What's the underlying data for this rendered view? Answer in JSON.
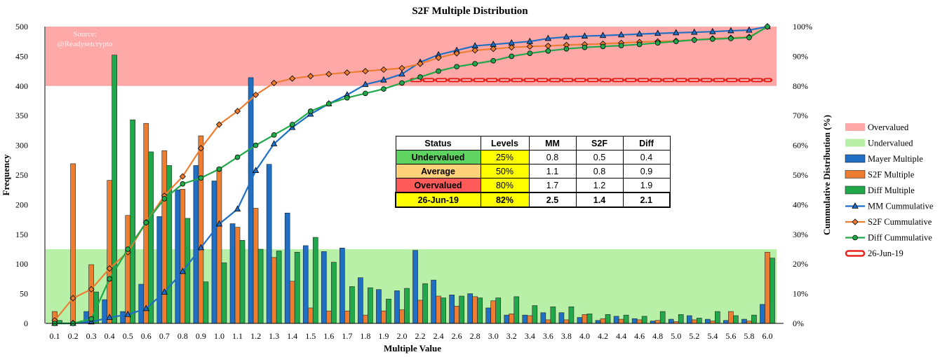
{
  "chart_data": {
    "type": "bar",
    "title": "S2F Multiple Distribution",
    "xlabel": "Multiple Value",
    "ylabel": "Frequency",
    "y2label": "Cummulative Distribution (%)",
    "ylim": [
      0,
      500
    ],
    "y2lim": [
      0,
      100
    ],
    "yticks": [
      "0",
      "50",
      "100",
      "150",
      "200",
      "250",
      "300",
      "350",
      "400",
      "450",
      "500"
    ],
    "y2ticks": [
      "0%",
      "10%",
      "20%",
      "30%",
      "40%",
      "50%",
      "60%",
      "70%",
      "80%",
      "90%",
      "100%"
    ],
    "categories": [
      "0.1",
      "0.2",
      "0.3",
      "0.4",
      "0.5",
      "0.6",
      "0.7",
      "0.8",
      "0.9",
      "1.0",
      "1.1",
      "1.2",
      "1.3",
      "1.4",
      "1.5",
      "1.6",
      "1.7",
      "1.8",
      "1.9",
      "2.0",
      "2.2",
      "2.4",
      "2.6",
      "2.8",
      "3.0",
      "3.2",
      "3.4",
      "3.6",
      "3.8",
      "4.0",
      "4.2",
      "4.4",
      "4.6",
      "4.8",
      "5.0",
      "5.2",
      "5.4",
      "5.6",
      "5.8",
      "6.0"
    ],
    "bar_series": [
      {
        "name": "Mayer Multiple",
        "color": "#1f6fc5",
        "values": [
          0,
          0,
          20,
          40,
          20,
          66,
          180,
          225,
          266,
          240,
          168,
          414,
          268,
          186,
          131,
          121,
          127,
          77,
          57,
          55,
          123,
          73,
          48,
          50,
          26,
          14,
          14,
          18,
          18,
          10,
          5,
          12,
          8,
          4,
          7,
          13,
          7,
          5,
          7,
          32
        ]
      },
      {
        "name": "S2F Multiple",
        "color": "#ed7d31",
        "values": [
          20,
          269,
          99,
          241,
          182,
          337,
          291,
          226,
          316,
          262,
          162,
          194,
          111,
          71,
          26,
          21,
          21,
          14,
          21,
          23,
          39,
          46,
          29,
          45,
          38,
          16,
          13,
          6,
          6,
          15,
          8,
          7,
          6,
          5,
          3,
          6,
          4,
          20,
          4,
          120
        ]
      },
      {
        "name": "Diff Multiple",
        "color": "#21a84a",
        "values": [
          5,
          0,
          53,
          452,
          343,
          289,
          266,
          177,
          70,
          102,
          140,
          125,
          122,
          120,
          145,
          103,
          62,
          60,
          41,
          59,
          67,
          43,
          46,
          43,
          43,
          45,
          30,
          28,
          28,
          16,
          15,
          14,
          12,
          20,
          15,
          9,
          20,
          13,
          14,
          110
        ]
      }
    ],
    "line_series": [
      {
        "name": "MM Cummulative",
        "color": "#1f6fc5",
        "marker": "triangle",
        "values": [
          0,
          0,
          0.5,
          2,
          3,
          5,
          10.5,
          17.5,
          25.5,
          33.5,
          38.5,
          51.5,
          60.5,
          66,
          70.5,
          74,
          77,
          80.5,
          82,
          84,
          88,
          90.5,
          92,
          93.5,
          94,
          94.5,
          95,
          96,
          96.5,
          96.8,
          97,
          97.2,
          97.5,
          97.7,
          97.9,
          98.1,
          98.3,
          98.6,
          98.8,
          100
        ]
      },
      {
        "name": "S2F Cummulative",
        "color": "#ed7d31",
        "marker": "diamond",
        "values": [
          1,
          8.5,
          11.5,
          18.5,
          24,
          34,
          43,
          49.5,
          59,
          67,
          71.5,
          77,
          81,
          82.5,
          83.3,
          84,
          84.5,
          85,
          85.5,
          86,
          87.5,
          89.5,
          91,
          92,
          92.5,
          93,
          93.3,
          93.5,
          93.8,
          94,
          94.2,
          94.5,
          94.8,
          95,
          95.2,
          95.5,
          96,
          96.2,
          96.5,
          100
        ]
      },
      {
        "name": "Diff Cummulative",
        "color": "#21a84a",
        "marker": "circle",
        "values": [
          0,
          0,
          1.5,
          15,
          25,
          34,
          42,
          47,
          49,
          52,
          56,
          60,
          63.5,
          67,
          71.5,
          74,
          76,
          77.5,
          79,
          81,
          83,
          85,
          86.5,
          87.5,
          88.5,
          90,
          91,
          91.8,
          92.5,
          93,
          93.3,
          93.6,
          94,
          94.5,
          95,
          95.5,
          95.8,
          96,
          96.3,
          100
        ]
      }
    ],
    "reference_line": {
      "name": "26-Jun-19",
      "y_percent": 82,
      "from_category": "2.2",
      "to_category": "6.0",
      "color": "#e8231d"
    },
    "bands": [
      {
        "name": "Overvalued",
        "from": 400,
        "to": 500,
        "color": "#ffa8a8"
      },
      {
        "name": "Undervalued",
        "from": 0,
        "to": 125,
        "color": "#b8f0a8"
      }
    ],
    "annotation": [
      "Source:",
      "@Readysetcrypto"
    ],
    "legend_position": "right",
    "legend": [
      "Overvalued",
      "Undervalued",
      "Mayer Multiple",
      "S2F Multiple",
      "Diff Multiple",
      "MM Cummulative",
      "S2F Cummulative",
      "Diff Cummulative",
      "26-Jun-19"
    ]
  },
  "table": {
    "headers": [
      "Status",
      "Levels",
      "MM",
      "S2F",
      "Diff"
    ],
    "rows": [
      {
        "status": "Undervalued",
        "status_color": "#5fd35f",
        "level": "25%",
        "level_color": "#ffff00",
        "mm": "0.8",
        "s2f": "0.5",
        "diff": "0.4"
      },
      {
        "status": "Average",
        "status_color": "#ffd27a",
        "level": "50%",
        "level_color": "#ffff00",
        "mm": "1.1",
        "s2f": "0.8",
        "diff": "0.9"
      },
      {
        "status": "Overvalued",
        "status_color": "#ff5a5a",
        "level": "80%",
        "level_color": "#ffff00",
        "mm": "1.7",
        "s2f": "1.2",
        "diff": "1.9"
      },
      {
        "status": "26-Jun-19",
        "status_color": "#ffff00",
        "level": "82%",
        "level_color": "#ffff00",
        "mm": "2.5",
        "s2f": "1.4",
        "diff": "2.1"
      }
    ]
  }
}
